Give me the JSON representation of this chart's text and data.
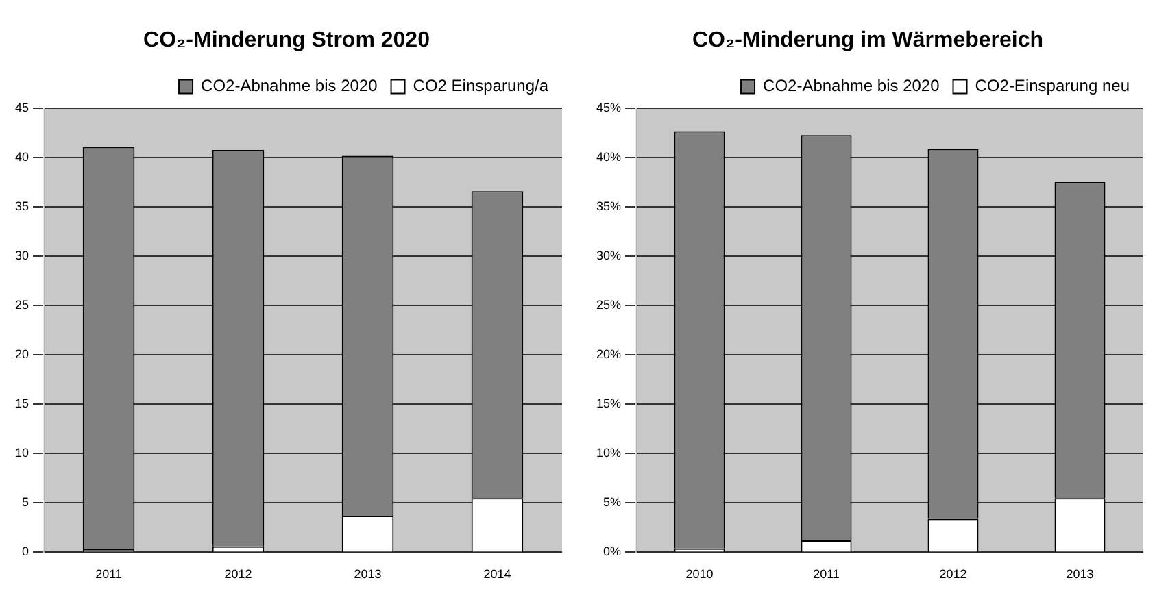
{
  "chart_data": [
    {
      "type": "bar",
      "title": "CO₂-Minderung Strom 2020",
      "categories": [
        "2011",
        "2012",
        "2013",
        "2014"
      ],
      "stacked": true,
      "series": [
        {
          "name": "CO2 Einsparung/a",
          "color": "#ffffff",
          "values": [
            0.3,
            0.6,
            3.7,
            5.5
          ]
        },
        {
          "name": "CO2-Abnahme bis 2020",
          "color": "#808080",
          "values": [
            40.8,
            40.2,
            36.5,
            31.1
          ]
        }
      ],
      "ylim": [
        0,
        45
      ],
      "yticks": [
        0,
        5,
        10,
        15,
        20,
        25,
        30,
        35,
        40,
        45
      ],
      "grid": "y",
      "legend": "top right"
    },
    {
      "type": "bar",
      "title": "CO₂-Minderung im Wärmebereich",
      "categories": [
        "2010",
        "2011",
        "2012",
        "2013"
      ],
      "stacked": true,
      "series": [
        {
          "name": "CO2-Einsparung neu",
          "color": "#ffffff",
          "values": [
            0.4,
            1.2,
            3.4,
            5.5
          ]
        },
        {
          "name": "CO2-Abnahme bis 2020",
          "color": "#808080",
          "values": [
            42.3,
            41.1,
            37.5,
            32.1
          ]
        }
      ],
      "ylim": [
        0,
        45
      ],
      "yticks": [
        {
          "value": 0,
          "label": "0%"
        },
        {
          "value": 5,
          "label": "5%"
        },
        {
          "value": 10,
          "label": "10%"
        },
        {
          "value": 15,
          "label": "15%"
        },
        {
          "value": 20,
          "label": "20%"
        },
        {
          "value": 25,
          "label": "25%"
        },
        {
          "value": 30,
          "label": "30%"
        },
        {
          "value": 35,
          "label": "35%"
        },
        {
          "value": 40,
          "label": "40%"
        },
        {
          "value": 45,
          "label": "45%"
        }
      ],
      "grid": "y",
      "legend": "top right"
    }
  ]
}
